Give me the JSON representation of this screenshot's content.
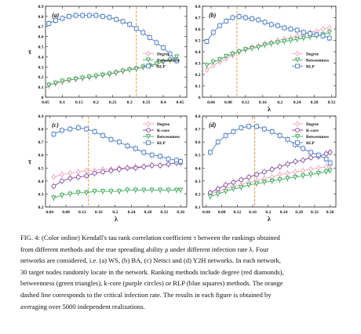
{
  "colors": {
    "degree": "#f4a3b6",
    "betweenness": "#3aa65a",
    "kcore": "#7b3f9e",
    "rlp": "#4a7bc4",
    "critical": "#f28c28"
  },
  "chart_data": [
    {
      "type": "line",
      "panel_label": "(a)",
      "ylabel": "τ",
      "xlabel": "",
      "xlim": [
        0.05,
        0.47
      ],
      "ylim": [
        0.0,
        0.9
      ],
      "xticks": [
        "0.05",
        "0.1",
        "0.15",
        "0.2",
        "0.25",
        "0.3",
        "0.35",
        "0.4",
        "0.45"
      ],
      "xtick_values": [
        0.05,
        0.1,
        0.15,
        0.2,
        0.25,
        0.3,
        0.35,
        0.4,
        0.45
      ],
      "yticks": [
        "0",
        "0.1",
        "0.2",
        "0.3",
        "0.4",
        "0.5",
        "0.6",
        "0.7",
        "0.8",
        "0.9"
      ],
      "ytick_values": [
        0,
        0.1,
        0.2,
        0.3,
        0.4,
        0.5,
        0.6,
        0.7,
        0.8,
        0.9
      ],
      "critical_x": 0.32,
      "legend": "middle-right",
      "series": [
        {
          "key": "degree",
          "name": "Degree",
          "marker": "diamond",
          "x": [
            0.06,
            0.08,
            0.1,
            0.12,
            0.14,
            0.16,
            0.18,
            0.2,
            0.22,
            0.24,
            0.26,
            0.28,
            0.3,
            0.32,
            0.34,
            0.36,
            0.38,
            0.4,
            0.42,
            0.44
          ],
          "y": [
            0.12,
            0.14,
            0.15,
            0.17,
            0.18,
            0.19,
            0.2,
            0.21,
            0.22,
            0.23,
            0.25,
            0.26,
            0.28,
            0.29,
            0.3,
            0.32,
            0.33,
            0.35,
            0.37,
            0.38
          ]
        },
        {
          "key": "betweenness",
          "name": "Betweenness",
          "marker": "triangle",
          "x": [
            0.06,
            0.08,
            0.1,
            0.12,
            0.14,
            0.16,
            0.18,
            0.2,
            0.22,
            0.24,
            0.26,
            0.28,
            0.3,
            0.32,
            0.34,
            0.36,
            0.38,
            0.4,
            0.42,
            0.44
          ],
          "y": [
            0.12,
            0.14,
            0.16,
            0.17,
            0.18,
            0.19,
            0.2,
            0.21,
            0.22,
            0.23,
            0.24,
            0.26,
            0.27,
            0.28,
            0.3,
            0.31,
            0.33,
            0.35,
            0.37,
            0.4
          ]
        },
        {
          "key": "rlp",
          "name": "RLP",
          "marker": "square",
          "x": [
            0.06,
            0.08,
            0.1,
            0.12,
            0.14,
            0.16,
            0.18,
            0.2,
            0.22,
            0.24,
            0.26,
            0.28,
            0.3,
            0.32,
            0.34,
            0.36,
            0.38,
            0.4,
            0.42,
            0.44
          ],
          "y": [
            0.73,
            0.76,
            0.78,
            0.8,
            0.81,
            0.81,
            0.81,
            0.81,
            0.8,
            0.79,
            0.77,
            0.75,
            0.72,
            0.68,
            0.64,
            0.59,
            0.54,
            0.49,
            0.43,
            0.36
          ]
        }
      ]
    },
    {
      "type": "line",
      "panel_label": "(b)",
      "ylabel": "",
      "xlabel": "λ",
      "xlim": [
        0.02,
        0.33
      ],
      "ylim": [
        0.0,
        0.8
      ],
      "xticks": [
        "0.04",
        "0.08",
        "0.12",
        "0.16",
        "0.2",
        "0.24",
        "0.28",
        "0.32"
      ],
      "xtick_values": [
        0.04,
        0.08,
        0.12,
        0.16,
        0.2,
        0.24,
        0.28,
        0.32
      ],
      "yticks": [
        "0",
        "0.1",
        "0.2",
        "0.3",
        "0.4",
        "0.5",
        "0.6",
        "0.7",
        "0.8"
      ],
      "ytick_values": [
        0,
        0.1,
        0.2,
        0.3,
        0.4,
        0.5,
        0.6,
        0.7,
        0.8
      ],
      "critical_x": 0.1,
      "legend": "middle-right",
      "series": [
        {
          "key": "degree",
          "name": "Degree",
          "marker": "diamond",
          "x": [
            0.03,
            0.045,
            0.06,
            0.075,
            0.09,
            0.105,
            0.12,
            0.135,
            0.15,
            0.165,
            0.18,
            0.195,
            0.21,
            0.225,
            0.24,
            0.255,
            0.27,
            0.285,
            0.3,
            0.315
          ],
          "y": [
            0.24,
            0.28,
            0.31,
            0.34,
            0.37,
            0.4,
            0.42,
            0.44,
            0.45,
            0.47,
            0.48,
            0.5,
            0.51,
            0.52,
            0.54,
            0.55,
            0.57,
            0.58,
            0.6,
            0.61
          ]
        },
        {
          "key": "betweenness",
          "name": "Betweenness",
          "marker": "triangle",
          "x": [
            0.03,
            0.045,
            0.06,
            0.075,
            0.09,
            0.105,
            0.12,
            0.135,
            0.15,
            0.165,
            0.18,
            0.195,
            0.21,
            0.225,
            0.24,
            0.255,
            0.27,
            0.285,
            0.3,
            0.315
          ],
          "y": [
            0.28,
            0.31,
            0.33,
            0.36,
            0.38,
            0.4,
            0.42,
            0.43,
            0.44,
            0.46,
            0.47,
            0.48,
            0.49,
            0.5,
            0.51,
            0.52,
            0.53,
            0.54,
            0.55,
            0.57
          ]
        },
        {
          "key": "rlp",
          "name": "RLP",
          "marker": "square",
          "x": [
            0.03,
            0.045,
            0.06,
            0.075,
            0.09,
            0.105,
            0.12,
            0.135,
            0.15,
            0.165,
            0.18,
            0.195,
            0.21,
            0.225,
            0.24,
            0.255,
            0.27,
            0.285,
            0.3,
            0.315
          ],
          "y": [
            0.49,
            0.57,
            0.63,
            0.67,
            0.7,
            0.71,
            0.7,
            0.69,
            0.68,
            0.66,
            0.64,
            0.63,
            0.61,
            0.6,
            0.59,
            0.57,
            0.56,
            0.55,
            0.54,
            0.52
          ]
        }
      ]
    },
    {
      "type": "line",
      "panel_label": "(c)",
      "ylabel": "τ",
      "xlabel": "λ",
      "xlim": [
        0.03,
        0.375
      ],
      "ylim": [
        0.2,
        0.9
      ],
      "xticks": [
        "0.04",
        "0.08",
        "0.12",
        "0.16",
        "0.2",
        "0.24",
        "0.28",
        "0.32",
        "0.36"
      ],
      "xtick_values": [
        0.04,
        0.08,
        0.12,
        0.16,
        0.2,
        0.24,
        0.28,
        0.32,
        0.36
      ],
      "yticks": [
        "0.2",
        "0.3",
        "0.4",
        "0.5",
        "0.6",
        "0.7",
        "0.8",
        "0.9"
      ],
      "ytick_values": [
        0.2,
        0.3,
        0.4,
        0.5,
        0.6,
        0.7,
        0.8,
        0.9
      ],
      "critical_x": 0.135,
      "legend": "top-right",
      "series": [
        {
          "key": "degree",
          "name": "Degree",
          "marker": "diamond",
          "x": [
            0.05,
            0.07,
            0.09,
            0.11,
            0.13,
            0.15,
            0.17,
            0.19,
            0.21,
            0.23,
            0.25,
            0.27,
            0.29,
            0.31,
            0.33,
            0.35,
            0.36
          ],
          "y": [
            0.43,
            0.45,
            0.46,
            0.47,
            0.48,
            0.48,
            0.49,
            0.49,
            0.5,
            0.5,
            0.51,
            0.51,
            0.52,
            0.52,
            0.53,
            0.54,
            0.55
          ]
        },
        {
          "key": "kcore",
          "name": "K-core",
          "marker": "circle",
          "x": [
            0.05,
            0.07,
            0.09,
            0.11,
            0.13,
            0.15,
            0.17,
            0.19,
            0.21,
            0.23,
            0.25,
            0.27,
            0.29,
            0.31,
            0.33,
            0.35,
            0.36
          ],
          "y": [
            0.36,
            0.4,
            0.42,
            0.43,
            0.44,
            0.46,
            0.47,
            0.48,
            0.49,
            0.5,
            0.5,
            0.51,
            0.52,
            0.52,
            0.53,
            0.54,
            0.54
          ]
        },
        {
          "key": "betweenness",
          "name": "Betweenness",
          "marker": "triangle",
          "x": [
            0.05,
            0.07,
            0.09,
            0.11,
            0.13,
            0.15,
            0.17,
            0.19,
            0.21,
            0.23,
            0.25,
            0.27,
            0.29,
            0.31,
            0.33,
            0.35,
            0.36
          ],
          "y": [
            0.27,
            0.29,
            0.3,
            0.31,
            0.31,
            0.32,
            0.32,
            0.32,
            0.32,
            0.33,
            0.33,
            0.33,
            0.33,
            0.33,
            0.33,
            0.33,
            0.33
          ]
        },
        {
          "key": "rlp",
          "name": "RLP",
          "marker": "square",
          "x": [
            0.05,
            0.07,
            0.09,
            0.11,
            0.13,
            0.15,
            0.17,
            0.19,
            0.21,
            0.23,
            0.25,
            0.27,
            0.29,
            0.31,
            0.33,
            0.35,
            0.36
          ],
          "y": [
            0.76,
            0.79,
            0.8,
            0.81,
            0.8,
            0.78,
            0.75,
            0.72,
            0.7,
            0.67,
            0.65,
            0.62,
            0.6,
            0.59,
            0.57,
            0.56,
            0.55
          ]
        }
      ]
    },
    {
      "type": "line",
      "panel_label": "(d)",
      "ylabel": "",
      "xlabel": "λ",
      "xlim": [
        0.03,
        0.375
      ],
      "ylim": [
        0.1,
        0.8
      ],
      "xticks": [
        "0.04",
        "0.08",
        "0.12",
        "0.16",
        "0.2",
        "0.24",
        "0.28",
        "0.32",
        "0.36"
      ],
      "xtick_values": [
        0.04,
        0.08,
        0.12,
        0.16,
        0.2,
        0.24,
        0.28,
        0.32,
        0.36
      ],
      "yticks": [
        "0.1",
        "0.2",
        "0.3",
        "0.4",
        "0.5",
        "0.6",
        "0.7",
        "0.8"
      ],
      "ytick_values": [
        0.1,
        0.2,
        0.3,
        0.4,
        0.5,
        0.6,
        0.7,
        0.8
      ],
      "critical_x": 0.165,
      "legend": "top-right",
      "series": [
        {
          "key": "degree",
          "name": "Degree",
          "marker": "diamond",
          "x": [
            0.05,
            0.07,
            0.09,
            0.11,
            0.13,
            0.15,
            0.17,
            0.19,
            0.21,
            0.23,
            0.25,
            0.27,
            0.29,
            0.31,
            0.33,
            0.35,
            0.36
          ],
          "y": [
            0.2,
            0.22,
            0.24,
            0.26,
            0.27,
            0.29,
            0.3,
            0.32,
            0.33,
            0.35,
            0.36,
            0.37,
            0.38,
            0.39,
            0.4,
            0.41,
            0.42
          ]
        },
        {
          "key": "kcore",
          "name": "K-core",
          "marker": "circle",
          "x": [
            0.05,
            0.07,
            0.09,
            0.11,
            0.13,
            0.15,
            0.17,
            0.19,
            0.21,
            0.23,
            0.25,
            0.27,
            0.29,
            0.31,
            0.33,
            0.35,
            0.36
          ],
          "y": [
            0.21,
            0.24,
            0.27,
            0.29,
            0.31,
            0.33,
            0.35,
            0.37,
            0.39,
            0.41,
            0.43,
            0.45,
            0.46,
            0.48,
            0.49,
            0.51,
            0.52
          ]
        },
        {
          "key": "betweenness",
          "name": "Betweenness",
          "marker": "triangle",
          "x": [
            0.05,
            0.07,
            0.09,
            0.11,
            0.13,
            0.15,
            0.17,
            0.19,
            0.21,
            0.23,
            0.25,
            0.27,
            0.29,
            0.31,
            0.33,
            0.35,
            0.36
          ],
          "y": [
            0.18,
            0.2,
            0.22,
            0.24,
            0.25,
            0.27,
            0.28,
            0.29,
            0.3,
            0.31,
            0.32,
            0.33,
            0.34,
            0.35,
            0.36,
            0.37,
            0.38
          ]
        },
        {
          "key": "rlp",
          "name": "RLP",
          "marker": "square",
          "x": [
            0.05,
            0.07,
            0.09,
            0.11,
            0.13,
            0.15,
            0.17,
            0.19,
            0.21,
            0.23,
            0.25,
            0.27,
            0.29,
            0.31,
            0.33,
            0.35,
            0.36
          ],
          "y": [
            0.52,
            0.6,
            0.65,
            0.68,
            0.71,
            0.72,
            0.72,
            0.7,
            0.68,
            0.65,
            0.62,
            0.58,
            0.55,
            0.52,
            0.5,
            0.47,
            0.44
          ]
        }
      ]
    }
  ],
  "caption": {
    "lines": [
      "FIG. 4: (Color online) Kendall's tau rank correlation coefficient τ between the rankings obtained",
      "from different methods and the true spreading ability ρ under different infection rate λ. Four",
      "networks are considered, i.e. (a) WS, (b) BA, (c) Netsci and (d) Y2H networks. In each network,",
      "30 target nodes randomly locate in the network. Ranking methods include degree (red diamonds),",
      "betweenness (green triangles), k-core (purple circles) or RLP (blue squares) methods. The orange",
      "dashed line corresponds to the critical infection rate. The results in each figure is obtained by",
      "averaging over 5000 independent realizations."
    ]
  }
}
